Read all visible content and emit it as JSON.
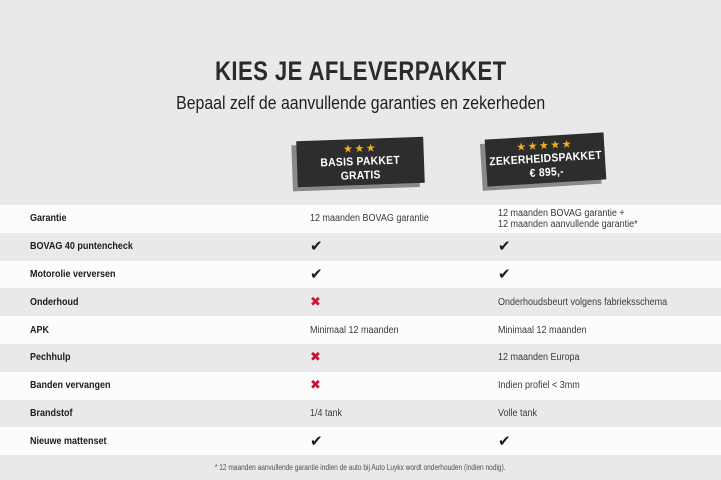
{
  "header": {
    "title": "KIES JE AFLEVERPAKKET",
    "subtitle": "Bepaal zelf de aanvullende garanties en zekerheden"
  },
  "packages": [
    {
      "stars": "★★★",
      "name_line": "BASIS PAKKET",
      "price_line": "GRATIS"
    },
    {
      "stars": "★★★★★",
      "name_line": "ZEKERHEIDSPAKKET",
      "price_line": "€ 895,-"
    }
  ],
  "table": {
    "rows": [
      {
        "label": "Garantie",
        "basis": {
          "value": "12 maanden BOVAG garantie",
          "type": "text"
        },
        "zeker": {
          "value": "12 maanden BOVAG garantie +\n12 maanden aanvullende garantie*",
          "type": "text"
        }
      },
      {
        "label": "BOVAG 40 puntencheck",
        "basis": {
          "value": "✔",
          "type": "check"
        },
        "zeker": {
          "value": "✔",
          "type": "check"
        }
      },
      {
        "label": "Motorolie verversen",
        "basis": {
          "value": "✔",
          "type": "check"
        },
        "zeker": {
          "value": "✔",
          "type": "check"
        }
      },
      {
        "label": "Onderhoud",
        "basis": {
          "value": "✖",
          "type": "cross"
        },
        "zeker": {
          "value": "Onderhoudsbeurt volgens fabrieksschema",
          "type": "text"
        }
      },
      {
        "label": "APK",
        "basis": {
          "value": "Minimaal 12 maanden",
          "type": "text"
        },
        "zeker": {
          "value": "Minimaal 12 maanden",
          "type": "text"
        }
      },
      {
        "label": "Pechhulp",
        "basis": {
          "value": "✖",
          "type": "cross"
        },
        "zeker": {
          "value": "12 maanden Europa",
          "type": "text"
        }
      },
      {
        "label": "Banden vervangen",
        "basis": {
          "value": "✖",
          "type": "cross"
        },
        "zeker": {
          "value": "Indien profiel < 3mm",
          "type": "text"
        }
      },
      {
        "label": "Brandstof",
        "basis": {
          "value": "1/4 tank",
          "type": "text"
        },
        "zeker": {
          "value": "Volle tank",
          "type": "text"
        }
      },
      {
        "label": "Nieuwe mattenset",
        "basis": {
          "value": "✔",
          "type": "check"
        },
        "zeker": {
          "value": "✔",
          "type": "check"
        }
      }
    ]
  },
  "footnote": "* 12 maanden aanvullende garantie indien de auto bij Auto Luykx wordt onderhouden (indien nodig).",
  "colors": {
    "page_background": "#e9e9e9",
    "row_white": "#fcfcfc",
    "badge_background": "#2d2d2d",
    "star_gold": "#efb11a",
    "check_black": "#1a1a1a",
    "cross_red": "#cf1137"
  }
}
